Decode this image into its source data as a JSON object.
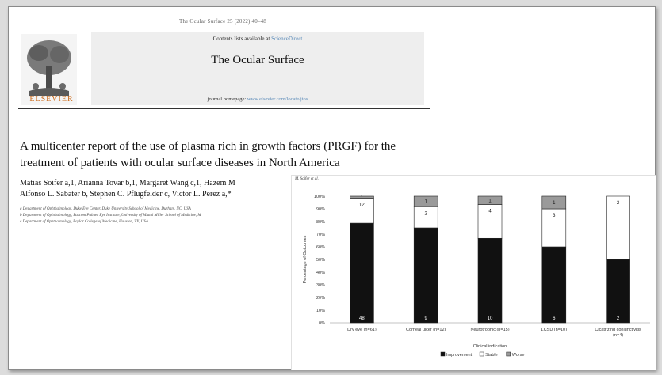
{
  "journal_ref": "The Ocular Surface 25 (2022) 40–48",
  "banner": {
    "contents_prefix": "Contents lists available at ",
    "contents_link": "ScienceDirect",
    "journal_title": "The Ocular Surface",
    "homepage_prefix": "journal homepage: ",
    "homepage_link": "www.elsevier.com/locate/jtos"
  },
  "publisher": "ELSEVIER",
  "paper": {
    "title": "A multicenter report of the use of plasma rich in growth factors (PRGF) for the treatment of patients with ocular surface diseases in North America",
    "authors_line1": "Matias Soifer a,1, Arianna Tovar b,1, Margaret Wang c,1, Hazem M",
    "authors_line2": "Alfonso L. Sabater b, Stephen C. Pflugfelder c, Victor L. Perez a,*",
    "affiliations": [
      "a Department of Ophthalmology, Duke Eye Center, Duke University School of Medicine, Durham, NC, USA",
      "b Department of Ophthalmology, Bascom Palmer Eye Institute, University of Miami Miller School of Medicine, M",
      "c Department of Ophthalmology, Baylor College of Medicine, Houston, TX, USA"
    ]
  },
  "chart_header": "M. Soifer et al.",
  "chart_data": {
    "type": "bar",
    "stacked": true,
    "xlabel": "Clinical indication",
    "ylabel": "Percentage of Outcomes",
    "ylim": [
      0,
      100
    ],
    "yticks": [
      "0%",
      "10%",
      "20%",
      "30%",
      "40%",
      "50%",
      "60%",
      "70%",
      "80%",
      "90%",
      "100%"
    ],
    "categories": [
      "Dry eye (n=61)",
      "Corneal ulcer (n=12)",
      "Neurotrophic (n=15)",
      "LCSD (n=10)",
      "Cicatrizing conjunctivitis (n=4)"
    ],
    "series": [
      {
        "name": "Improvement",
        "values": [
          78.7,
          75.0,
          66.7,
          60.0,
          50.0
        ],
        "labels": [
          "48",
          "9",
          "10",
          "6",
          "2"
        ],
        "color": "#111111"
      },
      {
        "name": "Stable",
        "values": [
          19.7,
          16.7,
          26.7,
          30.0,
          50.0
        ],
        "labels": [
          "12",
          "2",
          "4",
          "3",
          "2"
        ],
        "color": "#ffffff"
      },
      {
        "name": "Worse",
        "values": [
          1.6,
          8.3,
          6.6,
          10.0,
          0
        ],
        "labels": [
          "1",
          "1",
          "1",
          "1",
          ""
        ],
        "color": "#9a9a9a"
      }
    ],
    "legend": "bottom",
    "grid": false
  }
}
